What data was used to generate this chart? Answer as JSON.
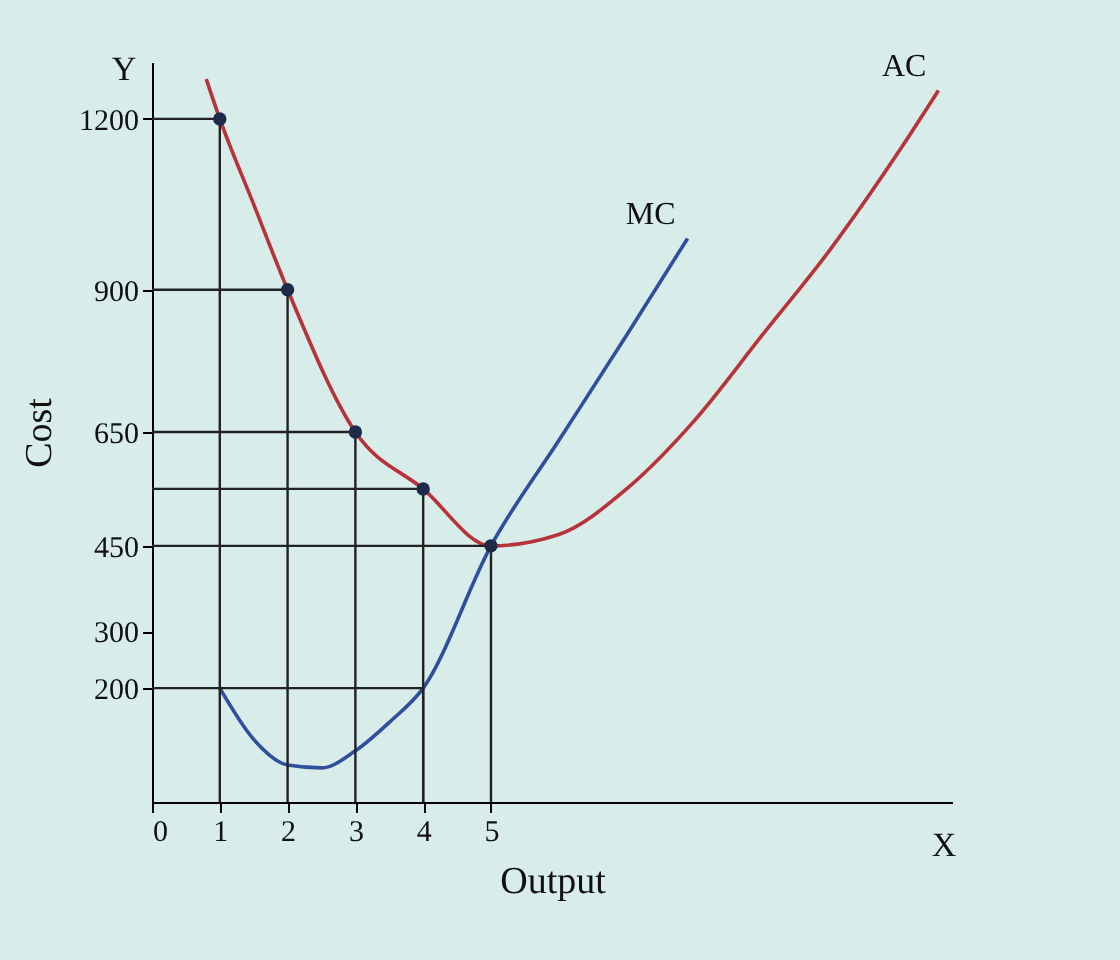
{
  "chart_data": {
    "type": "line",
    "xlabel": "Output",
    "ylabel": "Cost",
    "annotations": [
      "X",
      "Y"
    ],
    "xlim": [
      0,
      11.8
    ],
    "ylim": [
      0,
      1300
    ],
    "xticks": [
      0,
      1,
      2,
      3,
      4,
      5
    ],
    "yticks": [
      200,
      300,
      450,
      650,
      900,
      1200
    ],
    "grid": false,
    "series": [
      {
        "name": "AC",
        "color": "#b8323a",
        "x": [
          0.8,
          1,
          1.5,
          2,
          3,
          4,
          5,
          6,
          7,
          8,
          9,
          10,
          11,
          11.6
        ],
        "values": [
          1270,
          1200,
          1050,
          900,
          650,
          550,
          450,
          470,
          550,
          670,
          820,
          970,
          1140,
          1250
        ]
      },
      {
        "name": "MC",
        "color": "#2d4f9e",
        "x": [
          1,
          1.5,
          2,
          2.5,
          3,
          3.5,
          4,
          5,
          6,
          7,
          7.9
        ],
        "values": [
          200,
          110,
          65,
          60,
          90,
          140,
          200,
          450,
          635,
          820,
          990
        ]
      },
      {
        "color": "#222222",
        "x": [
          0,
          1,
          1
        ],
        "values": [
          1200,
          1200,
          0
        ]
      },
      {
        "color": "#222222",
        "x": [
          0,
          2,
          2
        ],
        "values": [
          900,
          900,
          0
        ]
      },
      {
        "color": "#222222",
        "x": [
          0,
          3,
          3
        ],
        "values": [
          650,
          650,
          0
        ]
      },
      {
        "color": "#222222",
        "x": [
          0,
          4,
          4
        ],
        "values": [
          550,
          550,
          0
        ]
      },
      {
        "color": "#222222",
        "x": [
          0,
          5,
          5
        ],
        "values": [
          450,
          450,
          0
        ]
      },
      {
        "color": "#222222",
        "x": [
          0,
          4,
          4
        ],
        "values": [
          200,
          200,
          0
        ]
      },
      {
        "type": "scatter",
        "marker": "circle",
        "color": "#1f2a4a",
        "x": [
          1,
          2,
          3,
          4,
          5
        ],
        "values": [
          1200,
          900,
          650,
          550,
          450
        ]
      }
    ]
  }
}
